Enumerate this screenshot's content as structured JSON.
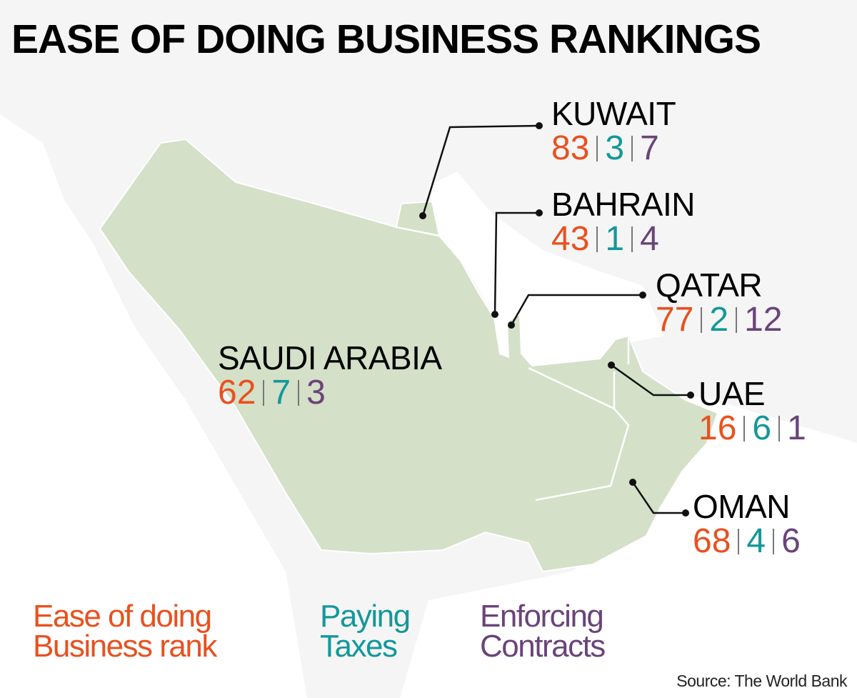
{
  "title": "EASE OF DOING BUSINESS RANKINGS",
  "colors": {
    "ease_of_doing_business": "#e8511f",
    "paying_taxes": "#13989a",
    "enforcing_contracts": "#6a4479",
    "gcc_land": "#d4e0c8",
    "other_land": "#f3f3f3",
    "sea": "#ffffff"
  },
  "countries": [
    {
      "name": "KUWAIT",
      "ease": "83",
      "taxes": "3",
      "contracts": "7"
    },
    {
      "name": "BAHRAIN",
      "ease": "43",
      "taxes": "1",
      "contracts": "4"
    },
    {
      "name": "QATAR",
      "ease": "77",
      "taxes": "2",
      "contracts": "12"
    },
    {
      "name": "SAUDI ARABIA",
      "ease": "62",
      "taxes": "7",
      "contracts": "3"
    },
    {
      "name": "UAE",
      "ease": "16",
      "taxes": "6",
      "contracts": "1"
    },
    {
      "name": "OMAN",
      "ease": "68",
      "taxes": "4",
      "contracts": "6"
    }
  ],
  "legend": {
    "ease_line1": "Ease of doing",
    "ease_line2": "Business rank",
    "taxes_line1": "Paying",
    "taxes_line2": "Taxes",
    "contracts_line1": "Enforcing",
    "contracts_line2": "Contracts"
  },
  "source": "Source: The World Bank"
}
